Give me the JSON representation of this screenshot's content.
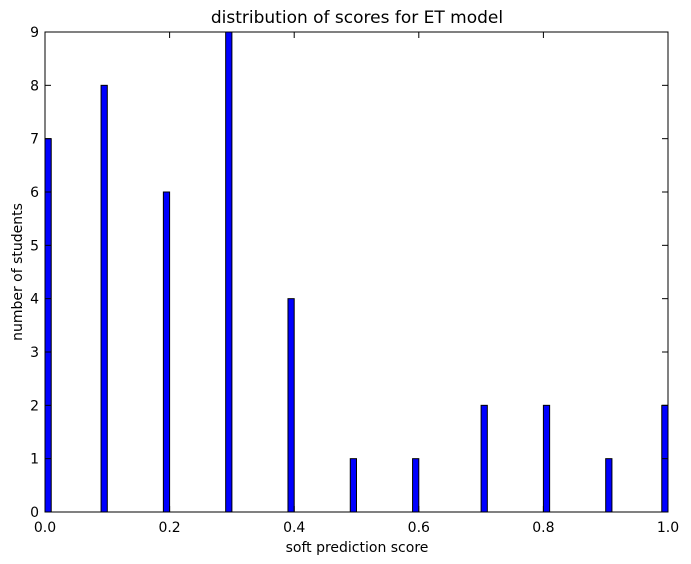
{
  "chart_data": {
    "type": "bar",
    "title": "distribution of scores for ET model",
    "xlabel": "soft prediction score",
    "ylabel": "number of students",
    "xlim": [
      0.0,
      1.0
    ],
    "ylim": [
      0,
      9
    ],
    "xticks": [
      "0.0",
      "0.2",
      "0.4",
      "0.6",
      "0.8",
      "1.0"
    ],
    "yticks": [
      "0",
      "1",
      "2",
      "3",
      "4",
      "5",
      "6",
      "7",
      "8",
      "9"
    ],
    "bins": [
      {
        "x": 0.0,
        "value": 7
      },
      {
        "x": 0.09,
        "value": 8
      },
      {
        "x": 0.19,
        "value": 6
      },
      {
        "x": 0.29,
        "value": 9
      },
      {
        "x": 0.39,
        "value": 4
      },
      {
        "x": 0.49,
        "value": 1
      },
      {
        "x": 0.59,
        "value": 1
      },
      {
        "x": 0.7,
        "value": 2
      },
      {
        "x": 0.8,
        "value": 2
      },
      {
        "x": 0.9,
        "value": 1
      },
      {
        "x": 0.99,
        "value": 2
      }
    ],
    "grid": false,
    "bar_color": "#0000ff"
  }
}
